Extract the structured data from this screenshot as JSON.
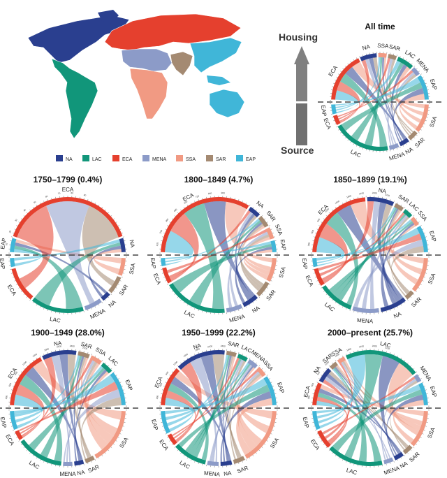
{
  "colors": {
    "NA": "#2a3f8f",
    "LAC": "#11967a",
    "ECA": "#e5402e",
    "MENA": "#8c9bc8",
    "SSA": "#f19a83",
    "SAR": "#a48a72",
    "EAP": "#40b6d8"
  },
  "map": {
    "legend": [
      "NA",
      "LAC",
      "ECA",
      "MENA",
      "SSA",
      "SAR",
      "EAP"
    ]
  },
  "axis_labels": {
    "top": "Housing",
    "bottom": "Source"
  },
  "chart_data": [
    {
      "type": "chord",
      "title": "All time",
      "housing_regions": [
        "ECA",
        "NA",
        "SSA",
        "SAR",
        "LAC",
        "MENA",
        "EAP"
      ],
      "source_regions": [
        "EAP",
        "ECA",
        "LAC",
        "MENA",
        "NA",
        "SAR",
        "SSA"
      ],
      "grid": false
    },
    {
      "type": "chord",
      "title": "1750–1799 (0.4%)",
      "housing_regions": [
        "EAP",
        "ECA",
        "NA"
      ],
      "source_regions": [
        "EAP",
        "ECA",
        "LAC",
        "MENA",
        "NA",
        "SAR",
        "SSA"
      ],
      "ticks": [
        "10",
        "20",
        "30",
        "40",
        "50",
        "60",
        "70",
        "80",
        "90"
      ]
    },
    {
      "type": "chord",
      "title": "1800–1849 (4.7%)",
      "housing_regions": [
        "ECA",
        "NA",
        "SAR",
        "SSA",
        "EAP"
      ],
      "source_regions": [
        "EAP",
        "ECA",
        "LAC",
        "MENA",
        "NA",
        "SAR",
        "SSA"
      ],
      "ticks": [
        "120",
        "240",
        "360",
        "480",
        "600",
        "720",
        "840",
        "960"
      ]
    },
    {
      "type": "chord",
      "title": "1850–1899 (19.1%)",
      "housing_regions": [
        "ECA",
        "NA",
        "SAR",
        "LAC",
        "SSA",
        "EAP"
      ],
      "source_regions": [
        "EAP",
        "ECA",
        "LAC",
        "MENA",
        "NA",
        "SAR",
        "SSA"
      ],
      "ticks": [
        "300",
        "600",
        "900",
        "1200",
        "1500",
        "1800",
        "2100",
        "2400",
        "2700"
      ]
    },
    {
      "type": "chord",
      "title": "1900–1949 (28.0%)",
      "housing_regions": [
        "ECA",
        "NA",
        "SAR",
        "SSA",
        "LAC",
        "EAP"
      ],
      "source_regions": [
        "EAP",
        "ECA",
        "LAC",
        "MENA",
        "NA",
        "SAR",
        "SSA"
      ],
      "ticks": [
        "300",
        "600",
        "900",
        "1200",
        "1500",
        "1800",
        "2100",
        "2400",
        "2700"
      ]
    },
    {
      "type": "chord",
      "title": "1950–1999 (22.2%)",
      "housing_regions": [
        "ECA",
        "NA",
        "SAR",
        "LAC",
        "MENA",
        "SSA",
        "EAP"
      ],
      "source_regions": [
        "EAP",
        "ECA",
        "LAC",
        "MENA",
        "NA",
        "SAR",
        "SSA"
      ],
      "ticks": [
        "300",
        "600",
        "900",
        "1200",
        "1500",
        "1800",
        "2100",
        "2400"
      ]
    },
    {
      "type": "chord",
      "title": "2000–present (25.7%)",
      "housing_regions": [
        "ECA",
        "NA",
        "SAR",
        "SSA",
        "LAC",
        "MENA",
        "EAP"
      ],
      "source_regions": [
        "EAP",
        "ECA",
        "LAC",
        "MENA",
        "NA",
        "SAR",
        "SSA"
      ],
      "ticks": [
        "300",
        "600",
        "900",
        "1200",
        "1500",
        "1800",
        "2100",
        "2400",
        "2700"
      ]
    }
  ]
}
